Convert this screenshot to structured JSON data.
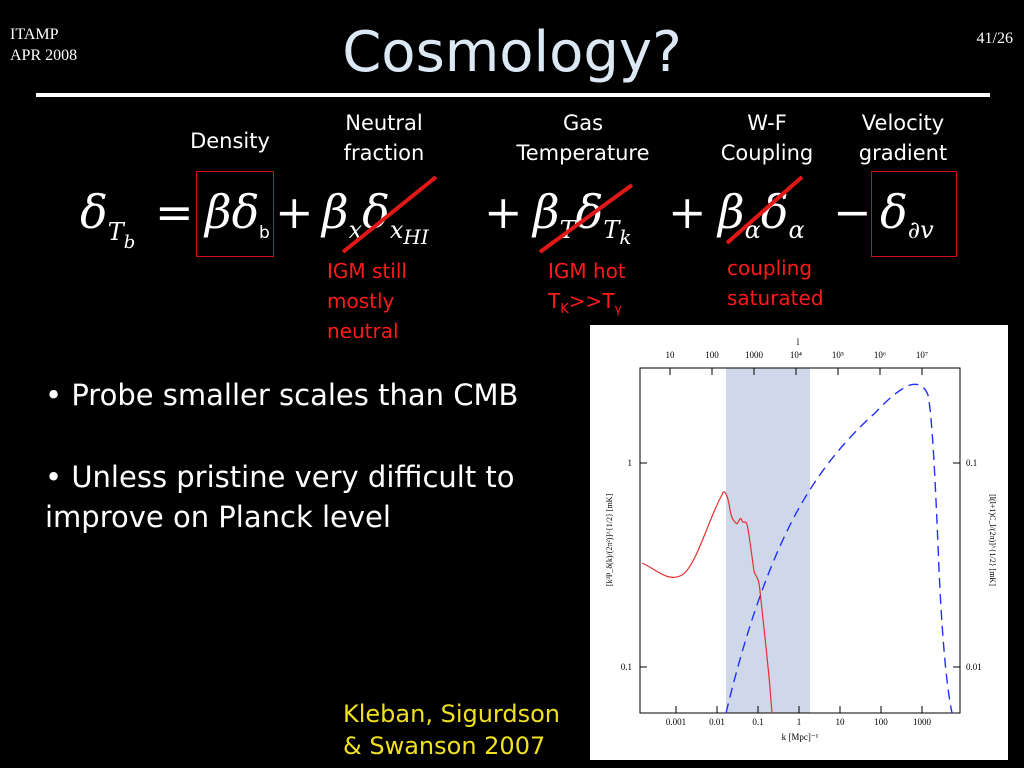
{
  "header": {
    "event": "ITAMP",
    "date": "APR 2008",
    "page": "41/26",
    "title": "Cosmology?"
  },
  "equation_labels": {
    "density": "Density",
    "neutral_1": "Neutral",
    "neutral_2": "fraction",
    "gas_1": "Gas",
    "gas_2": "Temperature",
    "wf_1": "W-F",
    "wf_2": "Coupling",
    "vel_1": "Velocity",
    "vel_2": "gradient"
  },
  "equation": {
    "lhs": "δ",
    "lhs_sub": "T",
    "lhs_subsub": "b",
    "equals": "=",
    "t1": "βδ",
    "t1_sub": "b",
    "plus": "+",
    "t2_a": "β",
    "t2_a_sub": "x",
    "t2_b": "δ",
    "t2_b_sub": "x",
    "t2_b_subsub": "HI",
    "t3_a": "β",
    "t3_a_sub": "T",
    "t3_b": "δ",
    "t3_b_sub": "T",
    "t3_b_subsub": "k",
    "t4_a": "β",
    "t4_a_sub": "α",
    "t4_b": "δ",
    "t4_b_sub": "α",
    "minus": "−",
    "t5": "δ",
    "t5_sub": "∂v"
  },
  "annotations": {
    "neutral_1": "IGM still",
    "neutral_2": "mostly",
    "neutral_3": "neutral",
    "hot_1": "IGM hot",
    "hot_2_a": "T",
    "hot_2_sub_k": "K",
    "hot_2_b": ">>T",
    "hot_2_sub_g": "γ",
    "coupling_1": "coupling",
    "coupling_2": "saturated"
  },
  "bullets": {
    "b1": "• Probe smaller scales than CMB",
    "b2_1": "• Unless pristine very difficult to",
    "b2_2": "improve on Planck level"
  },
  "citation": {
    "line1": "Kleban, Sigurdson",
    "line2": "& Swanson 2007"
  },
  "figure": {
    "top_axis_label": "l",
    "top_ticks": [
      "10",
      "100",
      "1000",
      "10⁴",
      "10⁵",
      "10⁶",
      "10⁷"
    ],
    "bottom_ticks": [
      "0.001",
      "0.01",
      "0.1",
      "1",
      "10",
      "100",
      "1000"
    ],
    "x_label": "k [Mpc]⁻¹",
    "left_ticks": [
      "1",
      "0.1"
    ],
    "right_ticks": [
      "0.1",
      "0.01"
    ],
    "left_label": "[k³P_δ(k)/(2π²)]^{1/2} [mK]",
    "right_label": "[l(l+1)C_l/(2π)]^{1/2} [mK]",
    "colors": {
      "solid": "#e53030",
      "dashed": "#2030ff",
      "band": "#cfd8ea"
    }
  }
}
